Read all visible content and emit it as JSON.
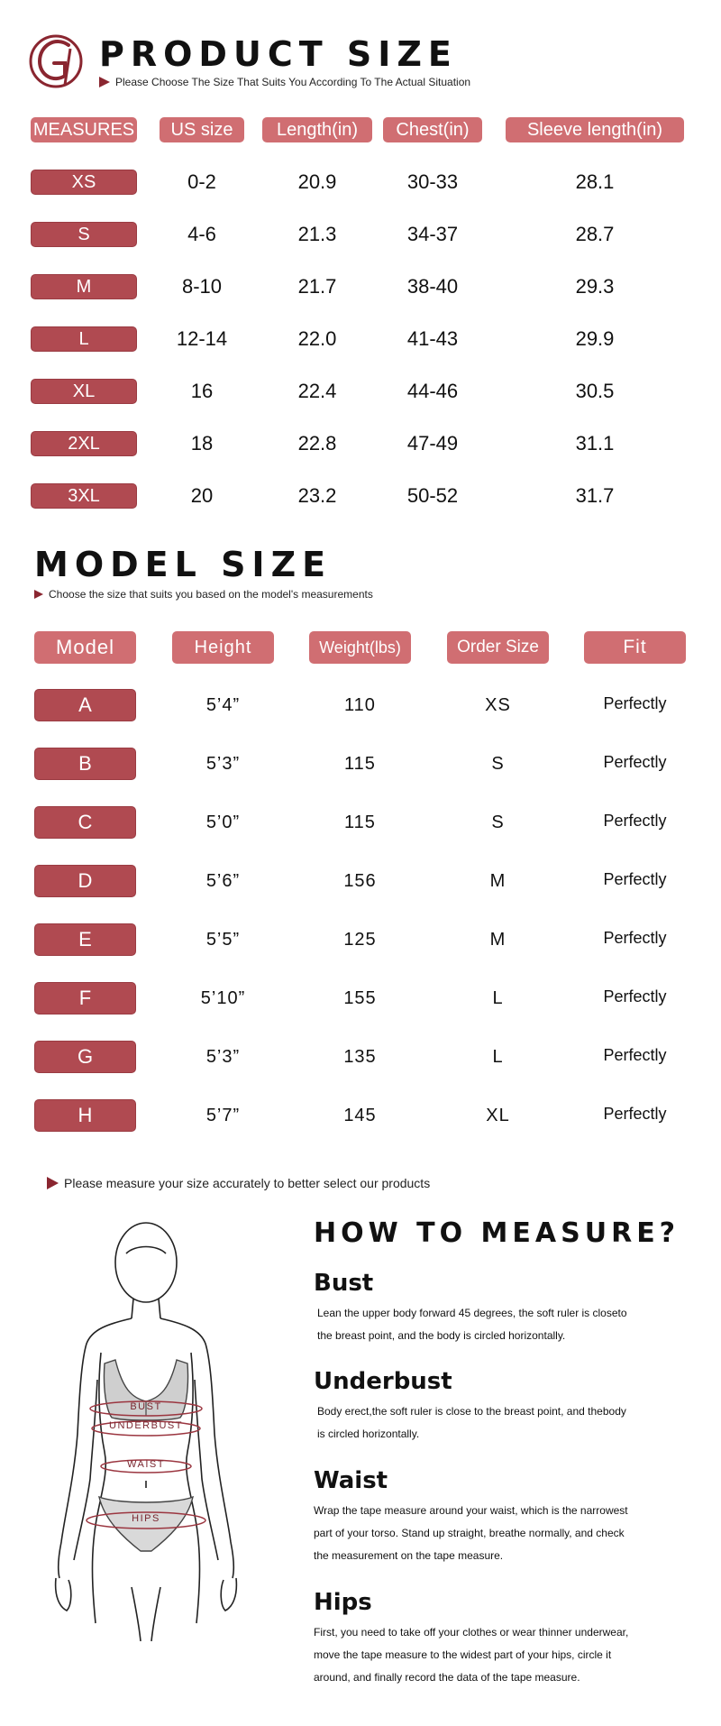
{
  "product_size": {
    "title": "PRODUCT SIZE",
    "subtitle": "Please Choose The Size That Suits You According To The Actual Situation",
    "headers": [
      "MEASURES",
      "US size",
      "Length(in)",
      "Chest(in)",
      "Sleeve length(in)"
    ],
    "rows": [
      {
        "size": "XS",
        "us": "0-2",
        "length": "20.9",
        "chest": "30-33",
        "sleeve": "28.1"
      },
      {
        "size": "S",
        "us": "4-6",
        "length": "21.3",
        "chest": "34-37",
        "sleeve": "28.7"
      },
      {
        "size": "M",
        "us": "8-10",
        "length": "21.7",
        "chest": "38-40",
        "sleeve": "29.3"
      },
      {
        "size": "L",
        "us": "12-14",
        "length": "22.0",
        "chest": "41-43",
        "sleeve": "29.9"
      },
      {
        "size": "XL",
        "us": "16",
        "length": "22.4",
        "chest": "44-46",
        "sleeve": "30.5"
      },
      {
        "size": "2XL",
        "us": "18",
        "length": "22.8",
        "chest": "47-49",
        "sleeve": "31.1"
      },
      {
        "size": "3XL",
        "us": "20",
        "length": "23.2",
        "chest": "50-52",
        "sleeve": "31.7"
      }
    ]
  },
  "model_size": {
    "title": "MODEL SIZE",
    "subtitle": "Choose the size that suits you based on the model's measurements",
    "headers": [
      "Model",
      "Height",
      "Weight(lbs)",
      "Order Size",
      "Fit"
    ],
    "rows": [
      {
        "model": "A",
        "height": "5’4”",
        "weight": "110",
        "order": "XS",
        "fit": "Perfectly"
      },
      {
        "model": "B",
        "height": "5’3”",
        "weight": "115",
        "order": "S",
        "fit": "Perfectly"
      },
      {
        "model": "C",
        "height": "5’0”",
        "weight": "115",
        "order": "S",
        "fit": "Perfectly"
      },
      {
        "model": "D",
        "height": "5’6”",
        "weight": "156",
        "order": "M",
        "fit": "Perfectly"
      },
      {
        "model": "E",
        "height": "5’5”",
        "weight": "125",
        "order": "M",
        "fit": "Perfectly"
      },
      {
        "model": "F",
        "height": "5’10”",
        "weight": "155",
        "order": "L",
        "fit": "Perfectly"
      },
      {
        "model": "G",
        "height": "5’3”",
        "weight": "135",
        "order": "L",
        "fit": "Perfectly"
      },
      {
        "model": "H",
        "height": "5’7”",
        "weight": "145",
        "order": "XL",
        "fit": "Perfectly"
      }
    ]
  },
  "measure_note": "Please measure your size accurately to better select our products",
  "how_to": {
    "title": "HOW TO MEASURE?",
    "figure_labels": {
      "bust": "BUST",
      "underbust": "UNDERBUST",
      "waist": "WAIST",
      "hips": "HIPS"
    },
    "sections": [
      {
        "heading": "Bust",
        "lines": [
          "Lean the upper body forward 45 degrees, the soft ruler is closeto",
          "the breast point, and the body is circled horizontally."
        ]
      },
      {
        "heading": "Underbust",
        "lines": [
          "Body erect,the soft ruler is close to the breast point, and thebody",
          "is circled horizontally."
        ]
      },
      {
        "heading": "Waist",
        "lines": [
          "Wrap the tape measure around your waist, which is the narrowest",
          "part of your torso. Stand up straight, breathe normally, and check",
          "the measurement on the tape measure."
        ]
      },
      {
        "heading": "Hips",
        "lines": [
          "First, you need to take off your clothes or wear thinner underwear,",
          "move the tape measure to the widest part of your hips, circle it",
          "around, and finally record the data of the tape measure."
        ]
      }
    ]
  },
  "colors": {
    "accent": "#c96467",
    "accent_dark": "#b04a51",
    "arrow": "#8a2630"
  }
}
